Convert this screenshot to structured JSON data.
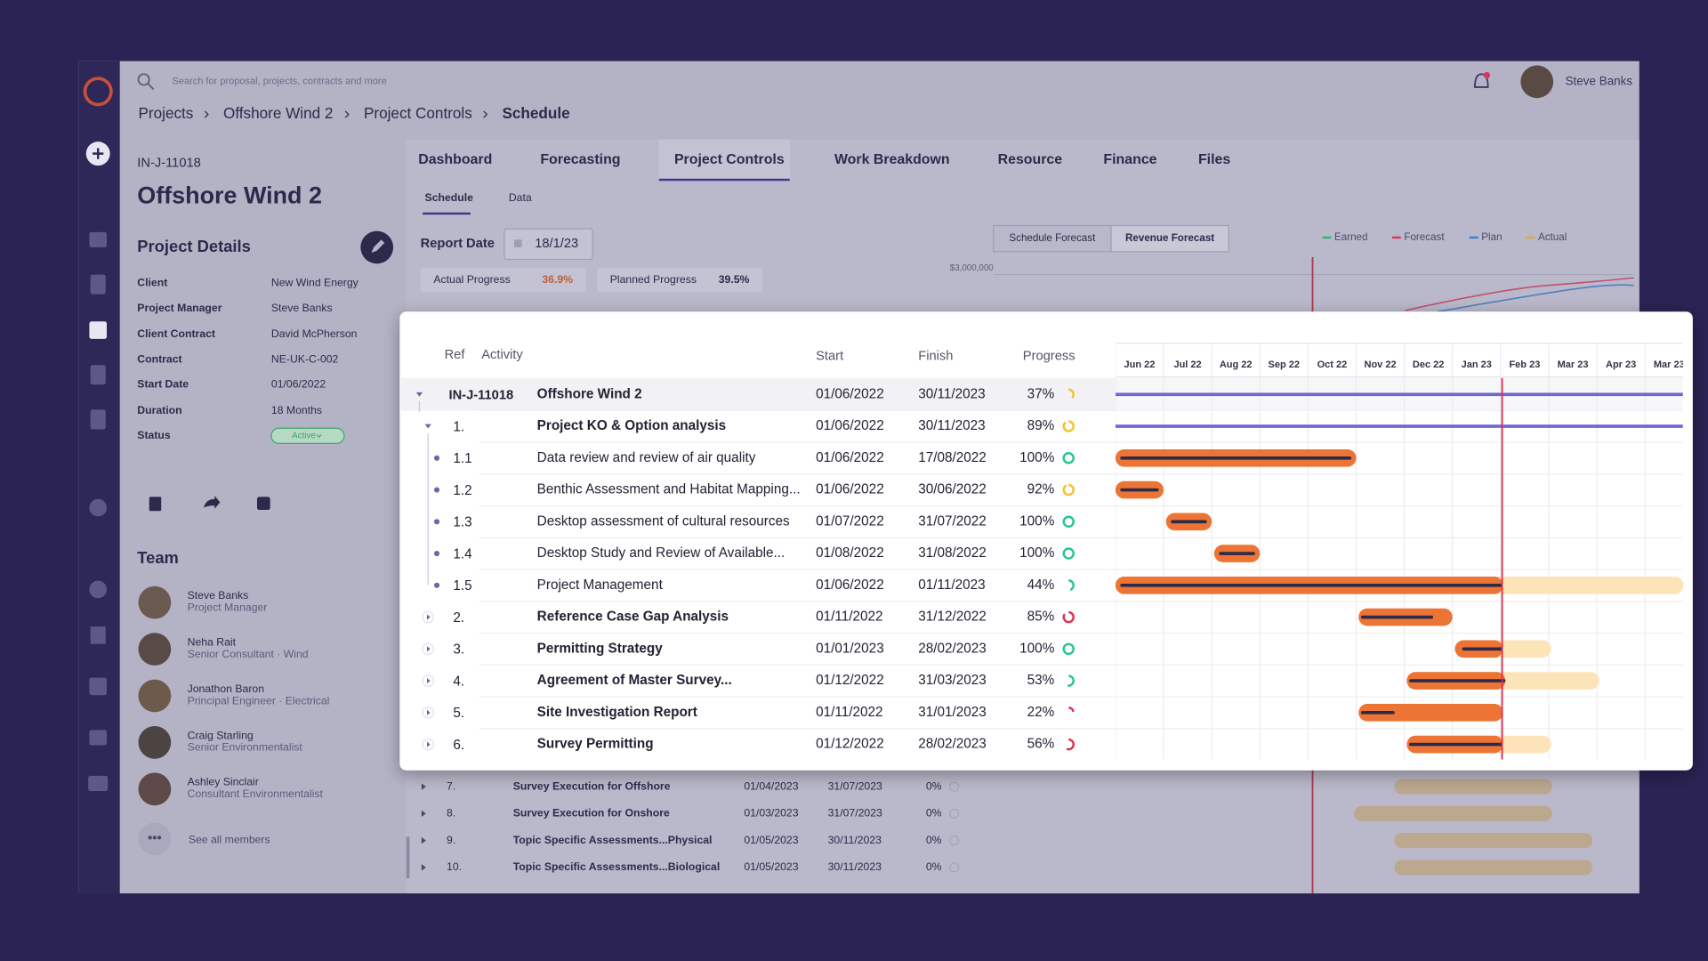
{
  "search_placeholder": "Search for proposal, projects, contracts and more",
  "user_name": "Steve Banks",
  "breadcrumb": [
    "Projects",
    "Offshore Wind 2",
    "Project Controls",
    "Schedule"
  ],
  "project": {
    "id": "IN-J-11018",
    "name": "Offshore Wind 2"
  },
  "details": {
    "title": "Project Details",
    "fields": [
      {
        "label": "Client",
        "value": "New Wind Energy"
      },
      {
        "label": "Project Manager",
        "value": "Steve Banks"
      },
      {
        "label": "Client Contract",
        "value": "David McPherson"
      },
      {
        "label": "Contract",
        "value": "NE-UK-C-002"
      },
      {
        "label": "Start Date",
        "value": "01/06/2022"
      },
      {
        "label": "Duration",
        "value": "18 Months"
      },
      {
        "label": "Status",
        "value": "Active"
      }
    ]
  },
  "team": {
    "title": "Team",
    "members": [
      {
        "name": "Steve Banks",
        "role": "Project Manager"
      },
      {
        "name": "Neha Rait",
        "role": "Senior Consultant · Wind"
      },
      {
        "name": "Jonathon Baron",
        "role": "Principal Engineer · Electrical"
      },
      {
        "name": "Craig Starling",
        "role": "Senior Environmentalist"
      },
      {
        "name": "Ashley Sinclair",
        "role": "Consultant Environmentalist"
      }
    ],
    "see_all": "See all members"
  },
  "tabs": {
    "items": [
      "Dashboard",
      "Forecasting",
      "Project Controls",
      "Work Breakdown",
      "Resource",
      "Finance",
      "Files"
    ],
    "active": 2
  },
  "subtabs": {
    "items": [
      "Schedule",
      "Data"
    ],
    "active": 0
  },
  "report": {
    "label": "Report Date",
    "date": "18/1/23"
  },
  "progress_cards": [
    {
      "label": "Actual Progress",
      "value": "36.9%"
    },
    {
      "label": "Planned Progress",
      "value": "39.5%"
    }
  ],
  "forecast_buttons": {
    "items": [
      "Schedule Forecast",
      "Revenue Forecast"
    ],
    "active": 1
  },
  "legend": [
    {
      "name": "Earned",
      "color": "#2bb673"
    },
    {
      "name": "Forecast",
      "color": "#d8365e"
    },
    {
      "name": "Plan",
      "color": "#3b7fd9"
    },
    {
      "name": "Actual",
      "color": "#e8a53a"
    }
  ],
  "axis_label": "$3,000,000",
  "schedule": {
    "columns": [
      "Ref",
      "Activity",
      "Start",
      "Finish",
      "Progress"
    ],
    "months": [
      "Jun 22",
      "Jul 22",
      "Aug 22",
      "Sep 22",
      "Oct 22",
      "Nov 22",
      "Dec 22",
      "Jan 23",
      "Feb 23",
      "Mar 23",
      "Apr 23",
      "Mar 23"
    ],
    "rows": [
      {
        "ref": "IN-J-11018",
        "activity": "Offshore Wind 2",
        "start": "01/06/2022",
        "finish": "30/11/2023",
        "progress": "37%",
        "color": "#f2c230"
      },
      {
        "ref": "1.",
        "activity": "Project KO & Option analysis",
        "start": "01/06/2022",
        "finish": "30/11/2023",
        "progress": "89%",
        "color": "#f2c230"
      },
      {
        "ref": "1.1",
        "activity": "Data review and review of air quality",
        "start": "01/06/2022",
        "finish": "17/08/2022",
        "progress": "100%",
        "color": "#22c98a"
      },
      {
        "ref": "1.2",
        "activity": "Benthic Assessment and Habitat Mapping...",
        "start": "01/06/2022",
        "finish": "30/06/2022",
        "progress": "92%",
        "color": "#f2c230"
      },
      {
        "ref": "1.3",
        "activity": "Desktop assessment of cultural resources",
        "start": "01/07/2022",
        "finish": "31/07/2022",
        "progress": "100%",
        "color": "#22c98a"
      },
      {
        "ref": "1.4",
        "activity": "Desktop Study and Review of Available...",
        "start": "01/08/2022",
        "finish": "31/08/2022",
        "progress": "100%",
        "color": "#22c98a"
      },
      {
        "ref": "1.5",
        "activity": "Project Management",
        "start": "01/06/2022",
        "finish": "01/11/2023",
        "progress": "44%",
        "color": "#22c98a"
      },
      {
        "ref": "2.",
        "activity": "Reference Case Gap Analysis",
        "start": "01/11/2022",
        "finish": "31/12/2022",
        "progress": "85%",
        "color": "#e0304f"
      },
      {
        "ref": "3.",
        "activity": "Permitting Strategy",
        "start": "01/01/2023",
        "finish": "28/02/2023",
        "progress": "100%",
        "color": "#22c98a"
      },
      {
        "ref": "4.",
        "activity": "Agreement of Master Survey...",
        "start": "01/12/2022",
        "finish": "31/03/2023",
        "progress": "53%",
        "color": "#22c98a"
      },
      {
        "ref": "5.",
        "activity": "Site Investigation Report",
        "start": "01/11/2022",
        "finish": "31/01/2023",
        "progress": "22%",
        "color": "#e0304f"
      },
      {
        "ref": "6.",
        "activity": "Survey Permitting",
        "start": "01/12/2022",
        "finish": "28/02/2023",
        "progress": "56%",
        "color": "#e0304f"
      }
    ],
    "background_rows": [
      {
        "ref": "7.",
        "activity": "Survey Execution for Offshore",
        "start": "01/04/2023",
        "finish": "31/07/2023",
        "progress": "0%"
      },
      {
        "ref": "8.",
        "activity": "Survey Execution for Onshore",
        "start": "01/03/2023",
        "finish": "31/07/2023",
        "progress": "0%"
      },
      {
        "ref": "9.",
        "activity": "Topic Specific Assessments...Physical",
        "start": "01/05/2023",
        "finish": "30/11/2023",
        "progress": "0%"
      },
      {
        "ref": "10.",
        "activity": "Topic Specific Assessments...Biological",
        "start": "01/05/2023",
        "finish": "30/11/2023",
        "progress": "0%"
      }
    ]
  }
}
